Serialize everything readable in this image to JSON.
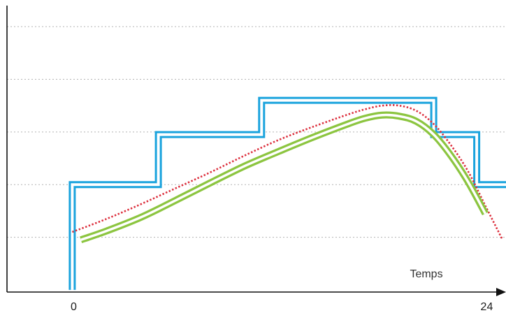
{
  "chart_data": {
    "type": "line",
    "title": "",
    "xlabel": "Temps",
    "ylabel": "",
    "xlim": [
      -4.2,
      25.2
    ],
    "ylim": [
      -0.2,
      5.4
    ],
    "grid": true,
    "grid_style": "dotted",
    "grid_y": [
      1,
      2,
      3,
      4,
      5
    ],
    "x_ticks": [
      0,
      24
    ],
    "tick_labels": [
      "0",
      "24"
    ],
    "colors": {
      "step": "#1aa3dd",
      "green_curve": "#8cc540",
      "red_curve": "#dc2e3c",
      "grid": "#b3b3b3",
      "axis": "#111111"
    },
    "series": [
      {
        "style": "step",
        "x": [
          0,
          0,
          5,
          5,
          11,
          11,
          21,
          21,
          23.5,
          23.5,
          26,
          26
        ],
        "y": [
          0,
          2.0,
          2.0,
          2.95,
          2.95,
          3.6,
          3.6,
          2.95,
          2.95,
          2.0,
          2.0,
          0
        ]
      },
      {
        "style": "curve-dotted",
        "x": [
          0,
          2,
          4,
          6,
          8,
          10,
          12,
          14,
          16,
          17,
          18,
          19,
          20,
          21,
          22,
          23,
          24,
          25
        ],
        "y": [
          1.1,
          1.35,
          1.63,
          1.93,
          2.23,
          2.55,
          2.85,
          3.1,
          3.33,
          3.43,
          3.5,
          3.5,
          3.4,
          3.15,
          2.75,
          2.25,
          1.6,
          0.95
        ]
      },
      {
        "style": "curve-double",
        "x": [
          0.5,
          2,
          4,
          6,
          8,
          10,
          12,
          14,
          16,
          17,
          18,
          19,
          20,
          21,
          22,
          23,
          24
        ],
        "y": [
          0.95,
          1.12,
          1.38,
          1.7,
          2.03,
          2.35,
          2.63,
          2.9,
          3.15,
          3.26,
          3.32,
          3.3,
          3.2,
          2.95,
          2.55,
          2.05,
          1.45
        ]
      }
    ]
  }
}
